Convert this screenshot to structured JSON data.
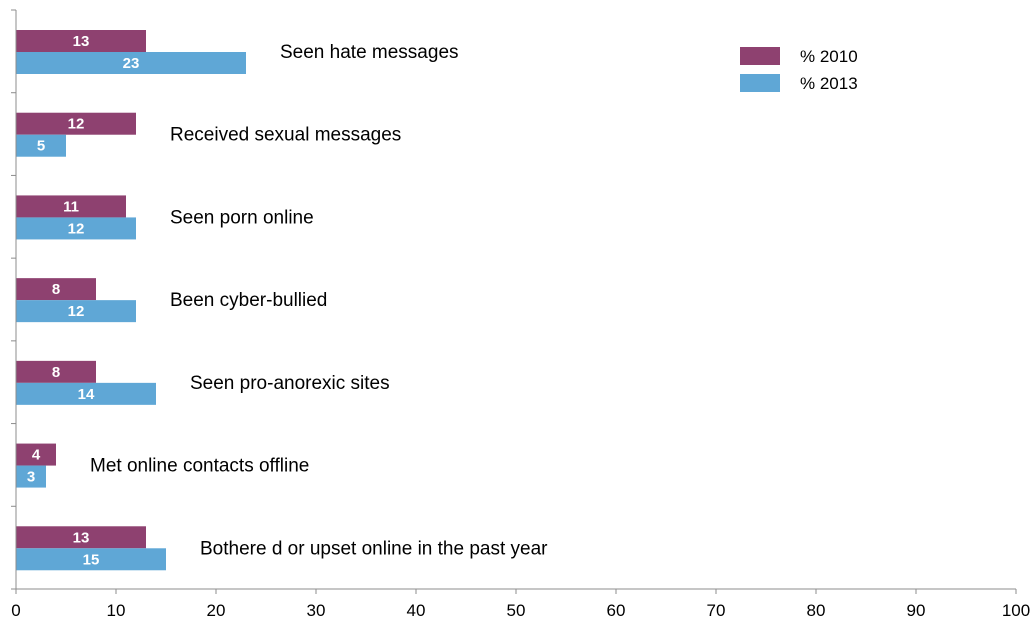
{
  "chart_data": {
    "type": "bar",
    "orientation": "horizontal",
    "categories": [
      "Seen hate messages",
      "Received sexual messages",
      "Seen porn online",
      "Been cyber-bullied",
      "Seen pro-anorexic sites",
      "Met online contacts offline",
      "Bothere d or upset online in the past year"
    ],
    "series": [
      {
        "name": "% 2010",
        "values": [
          13,
          12,
          11,
          8,
          8,
          4,
          13
        ],
        "color": "#8e4170"
      },
      {
        "name": "% 2013",
        "values": [
          23,
          5,
          12,
          12,
          14,
          3,
          15
        ],
        "color": "#5fa7d6"
      }
    ],
    "xlim": [
      0,
      100
    ],
    "x_ticks": [
      "0",
      "10",
      "20",
      "30",
      "40",
      "50",
      "60",
      "70",
      "80",
      "90",
      "100"
    ],
    "xlabel": "",
    "ylabel": "",
    "title": "",
    "grid": false,
    "legend_position": "top-right"
  }
}
